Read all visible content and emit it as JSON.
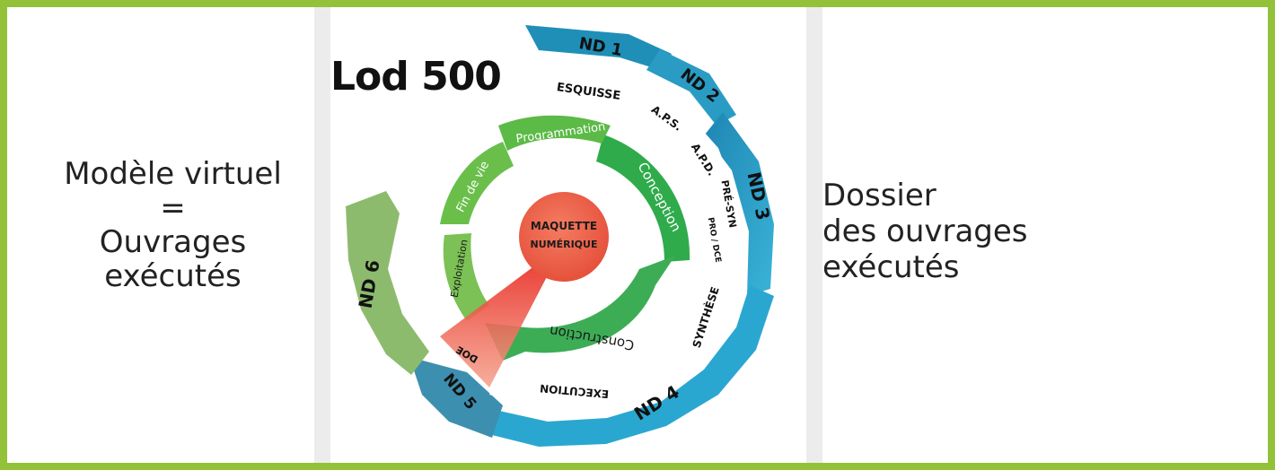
{
  "left_caption": {
    "line1": "Modèle virtuel",
    "line2": "=",
    "line3": "Ouvrages",
    "line4": "exécutés"
  },
  "right_caption": {
    "line1": "Dossier",
    "line2": "des ouvrages",
    "line3": "exécutés"
  },
  "diagram": {
    "lod_label": "Lod 500",
    "center_line1": "MAQUETTE",
    "center_line2": "NUMÉRIQUE",
    "inner_cycle": [
      "Programmation",
      "Conception",
      "Construction",
      "Exploitation",
      "Fin de vie"
    ],
    "phases": [
      "ESQUISSE",
      "A.P.S.",
      "A.P.D.",
      "PRÉ-SYN",
      "PRO / DCE",
      "SYNTHÈSE",
      "EXECUTION",
      "DOE"
    ],
    "levels": [
      "ND 1",
      "ND 2",
      "ND 3",
      "ND 4",
      "ND 5",
      "ND 6"
    ],
    "colors": {
      "frame": "#93c13a",
      "outer_ring": "#2ea3c8",
      "outer_ring_dark": "#1f7fa3",
      "nd6": "#8dbb6e",
      "inner_green": "#3cad4f",
      "inner_light": "#66c24d",
      "center": "#ef6148",
      "wedge": "#e8231d"
    }
  }
}
